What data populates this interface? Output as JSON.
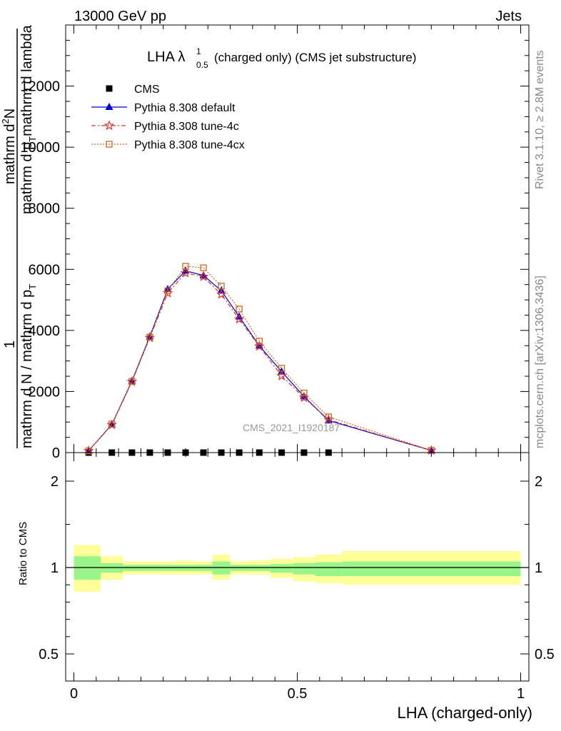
{
  "header": {
    "left": "13000 GeV pp",
    "right": "Jets"
  },
  "side": {
    "rivet": "Rivet 3.1.10, ≥ 2.8M events",
    "mcplots": "mcplots.cern.ch [arXiv:1306.3436]"
  },
  "chart_data": [
    {
      "type": "line",
      "title": "LHA λ",
      "title_sup": "1",
      "title_sub": "0.5",
      "title_tail": "(charged only) (CMS jet substructure)",
      "watermark": "CMS_2021_I1920187",
      "ylabel": {
        "numerator_top": "1",
        "denominator": "mathrm d N / mathrm d p_T",
        "numerator_main": "mathrm d²N",
        "denominator_main": "mathrm d p_T mathrm d lambda"
      },
      "ylabel_parts": [
        "1",
        "mathrm d N / mathrm d p",
        "T",
        "mathrm d",
        "2",
        "N",
        "mathrm d p",
        "T",
        "mathrm d",
        "lambda"
      ],
      "ylim": [
        0,
        14000
      ],
      "yticks": [
        0,
        2000,
        4000,
        6000,
        8000,
        10000,
        12000
      ],
      "ytick_labels": [
        "0",
        "2000",
        "4000",
        "6000",
        "8000",
        "10000",
        "12000"
      ],
      "x": [
        0.033,
        0.085,
        0.13,
        0.17,
        0.21,
        0.25,
        0.29,
        0.33,
        0.37,
        0.415,
        0.465,
        0.515,
        0.57,
        0.8
      ],
      "series": [
        {
          "name": "CMS",
          "color": "#000000",
          "marker": "square",
          "values": [
            0,
            0,
            0,
            0,
            0,
            0,
            0,
            0,
            0,
            0,
            0,
            0,
            0,
            null
          ]
        },
        {
          "name": "Pythia 8.308 default",
          "color": "#0000cc",
          "marker": "triangle",
          "values": [
            60,
            920,
            2350,
            3800,
            5350,
            5950,
            5800,
            5300,
            4450,
            3500,
            2650,
            1840,
            1050,
            70
          ]
        },
        {
          "name": "Pythia 8.308 tune-4c",
          "color": "#dd3333",
          "marker": "star",
          "values": [
            55,
            910,
            2320,
            3760,
            5220,
            5880,
            5760,
            5180,
            4370,
            3480,
            2510,
            1800,
            1080,
            68
          ]
        },
        {
          "name": "Pythia 8.308 tune-4cx",
          "color": "#cc6622",
          "marker": "open-square",
          "values": [
            58,
            935,
            2330,
            3780,
            5300,
            6100,
            6050,
            5450,
            4700,
            3650,
            2760,
            1950,
            1170,
            72
          ]
        }
      ],
      "legend_position": "top-left"
    },
    {
      "type": "area",
      "ylabel": "Ratio to CMS",
      "xlabel": "LHA (charged-only)",
      "xlim": [
        0,
        1
      ],
      "xticks": [
        0,
        0.5,
        1
      ],
      "xtick_labels": [
        "0",
        "0.5",
        "1"
      ],
      "ylim": [
        0.35,
        2.35
      ],
      "yticks": [
        0.5,
        1,
        2
      ],
      "ytick_labels": [
        "0.5",
        "1",
        "2"
      ],
      "bin_edges": [
        0,
        0.06,
        0.11,
        0.15,
        0.19,
        0.23,
        0.27,
        0.31,
        0.35,
        0.39,
        0.44,
        0.49,
        0.54,
        0.6,
        1.0
      ],
      "band_inner": [
        [
          0.93,
          1.13
        ],
        [
          0.97,
          1.05
        ],
        [
          0.98,
          1.03
        ],
        [
          0.98,
          1.03
        ],
        [
          0.98,
          1.03
        ],
        [
          0.98,
          1.03
        ],
        [
          0.98,
          1.03
        ],
        [
          0.96,
          1.07
        ],
        [
          0.98,
          1.03
        ],
        [
          0.98,
          1.03
        ],
        [
          0.97,
          1.04
        ],
        [
          0.96,
          1.05
        ],
        [
          0.95,
          1.06
        ],
        [
          0.95,
          1.07
        ]
      ],
      "band_outer": [
        [
          0.86,
          1.26
        ],
        [
          0.93,
          1.13
        ],
        [
          0.96,
          1.07
        ],
        [
          0.96,
          1.07
        ],
        [
          0.96,
          1.07
        ],
        [
          0.96,
          1.08
        ],
        [
          0.96,
          1.07
        ],
        [
          0.93,
          1.15
        ],
        [
          0.96,
          1.07
        ],
        [
          0.96,
          1.08
        ],
        [
          0.94,
          1.1
        ],
        [
          0.92,
          1.12
        ],
        [
          0.91,
          1.15
        ],
        [
          0.9,
          1.19
        ]
      ],
      "colors": {
        "inner": "#99f589",
        "outer": "#feff99"
      }
    }
  ]
}
